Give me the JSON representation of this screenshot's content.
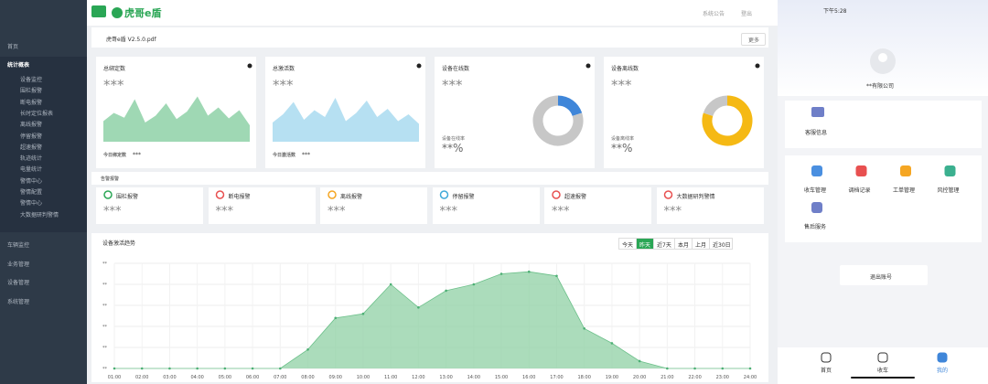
{
  "header": {
    "brand": "虎哥e盾",
    "links": [
      "系统公告",
      "登出"
    ]
  },
  "sidebar": {
    "items": [
      "首页",
      "统计概表"
    ],
    "sub_items": [
      "设备监控",
      "围栏报警",
      "断电报警",
      "长时定位报表",
      "离线报警",
      "停留报警",
      "超速报警",
      "轨迹统计",
      "电量统计",
      "警情中心",
      "警情配置",
      "警情中心",
      "大数据研判警情"
    ],
    "bottom_items": [
      "车辆监控",
      "业务管理",
      "设备管理",
      "系统管理"
    ]
  },
  "notice": {
    "text": "虎哥e盾 V2.5.0.pdf",
    "button": "更多"
  },
  "stat_cards": [
    {
      "title": "总绑定数",
      "value": "***",
      "footer_label": "今日绑定数",
      "footer_value": "***",
      "color": "#9fd8b4",
      "trend": [
        30,
        42,
        35,
        62,
        28,
        38,
        56,
        33,
        44,
        66,
        38,
        50,
        34,
        46,
        24
      ]
    },
    {
      "title": "总激活数",
      "value": "***",
      "footer_label": "今日激活数",
      "footer_value": "***",
      "color": "#b6e0f2",
      "trend": [
        28,
        40,
        58,
        32,
        46,
        36,
        64,
        30,
        42,
        60,
        36,
        48,
        30,
        40,
        26
      ]
    },
    {
      "title": "设备在线数",
      "value": "***",
      "footer_label": "设备在线率",
      "footer_value": "**%",
      "donut": [
        {
          "value": 20,
          "color": "#3f86d9"
        },
        {
          "value": 80,
          "color": "#c7c7c7"
        }
      ]
    },
    {
      "title": "设备离线数",
      "value": "***",
      "footer_label": "设备离线率",
      "footer_value": "**%",
      "donut": [
        {
          "value": 80,
          "color": "#f5b914"
        },
        {
          "value": 20,
          "color": "#c7c7c7"
        }
      ]
    }
  ],
  "alarms": {
    "title": "告警报警",
    "items": [
      {
        "name": "围栏报警",
        "value": "***"
      },
      {
        "name": "断电报警",
        "value": "***"
      },
      {
        "name": "离线报警",
        "value": "***"
      },
      {
        "name": "停留报警",
        "value": "***"
      },
      {
        "name": "超速报警",
        "value": "***"
      },
      {
        "name": "大数据研判警情",
        "value": "***"
      }
    ]
  },
  "chart_data": {
    "type": "area",
    "title": "设备激活趋势",
    "tabs": [
      "今天",
      "昨天",
      "近7天",
      "本月",
      "上月",
      "近30日"
    ],
    "active_tab": 1,
    "categories": [
      "01:00",
      "02:00",
      "03:00",
      "04:00",
      "05:00",
      "06:00",
      "07:00",
      "08:00",
      "09:00",
      "10:00",
      "11:00",
      "12:00",
      "13:00",
      "14:00",
      "15:00",
      "16:00",
      "17:00",
      "18:00",
      "19:00",
      "20:00",
      "21:00",
      "22:00",
      "23:00",
      "24:00"
    ],
    "values": [
      0,
      0,
      0,
      0,
      0,
      0,
      0,
      0.9,
      2.4,
      2.6,
      4.0,
      2.9,
      3.7,
      4.0,
      4.5,
      4.6,
      4.4,
      1.9,
      1.2,
      0.35,
      0,
      0,
      0,
      0
    ],
    "color": "#8fd0a4",
    "ylim": [
      0,
      5
    ],
    "yticks": [
      {
        "value": 0,
        "label": "**"
      },
      {
        "value": 1,
        "label": "**"
      },
      {
        "value": 2,
        "label": "**"
      },
      {
        "value": 3,
        "label": "**"
      },
      {
        "value": 4,
        "label": "**"
      },
      {
        "value": 5,
        "label": "**"
      }
    ],
    "grid": true
  },
  "phone": {
    "status_time": "下午5:28",
    "company": "**有限公司",
    "service": "客服信息",
    "menu": [
      "收车管理",
      "调档记录",
      "工单管理",
      "风控管理",
      "售后服务"
    ],
    "logout": "退出账号",
    "tabs": [
      "首页",
      "收车",
      "我的"
    ]
  }
}
